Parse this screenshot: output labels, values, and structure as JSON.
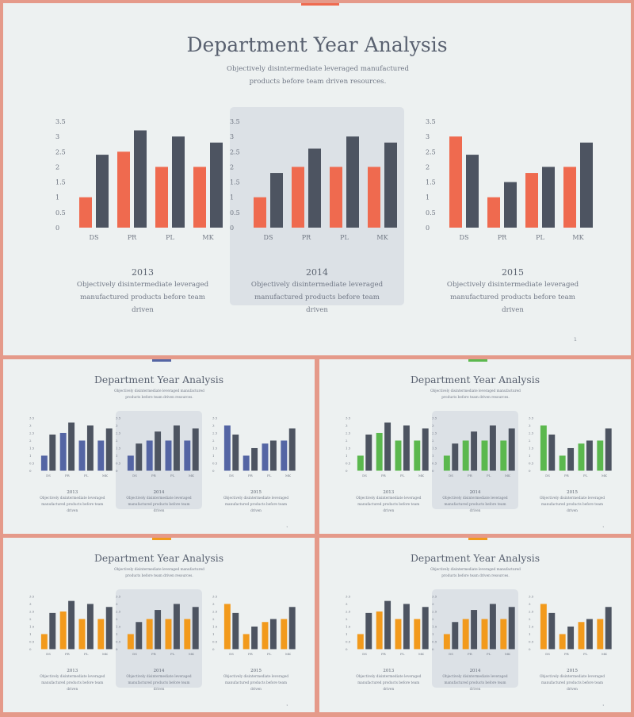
{
  "title": "Department Year Analysis",
  "subtitle": "Objectively disintermediate leveraged manufactured products before team driven resources.",
  "page_number": "1",
  "panel_description": "Objectively disintermediate leveraged manufactured products before team driven",
  "colors": {
    "background": "#edf1f1",
    "frame": "#e59a8a",
    "highlight_panel": "#dce1e6",
    "dark_bar": "#4d5461",
    "slide_accents": [
      "#ef6a4f",
      "#5465a4",
      "#5bb84e",
      "#f29a1c",
      "#f29a1c"
    ]
  },
  "chart_data": [
    {
      "type": "bar",
      "title": "2013",
      "categories": [
        "DS",
        "PR",
        "PL",
        "MK"
      ],
      "series": [
        {
          "values": [
            1.0,
            2.5,
            2.0,
            2.0
          ]
        },
        {
          "values": [
            2.4,
            3.2,
            3.0,
            2.8
          ]
        }
      ],
      "yticks": [
        "0",
        "0.5",
        "1",
        "1.5",
        "2",
        "2.5",
        "3",
        "3.5"
      ],
      "ylim": [
        0,
        3.5
      ]
    },
    {
      "type": "bar",
      "title": "2014",
      "categories": [
        "DS",
        "PR",
        "PL",
        "MK"
      ],
      "series": [
        {
          "values": [
            1.0,
            2.0,
            2.0,
            2.0
          ]
        },
        {
          "values": [
            1.8,
            2.6,
            3.0,
            2.8
          ]
        }
      ],
      "yticks": [
        "0",
        "0.5",
        "1",
        "1.5",
        "2",
        "2.5",
        "3",
        "3.5"
      ],
      "ylim": [
        0,
        3.5
      ]
    },
    {
      "type": "bar",
      "title": "2015",
      "categories": [
        "DS",
        "PR",
        "PL",
        "MK"
      ],
      "series": [
        {
          "values": [
            3.0,
            1.0,
            1.8,
            2.0
          ]
        },
        {
          "values": [
            2.4,
            1.5,
            2.0,
            2.8
          ]
        }
      ],
      "yticks": [
        "0",
        "0.5",
        "1",
        "1.5",
        "2",
        "2.5",
        "3",
        "3.5"
      ],
      "ylim": [
        0,
        3.5
      ]
    }
  ]
}
